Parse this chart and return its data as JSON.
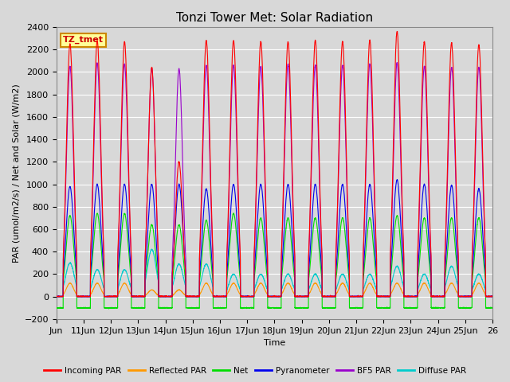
{
  "title": "Tonzi Tower Met: Solar Radiation",
  "ylabel": "PAR (umol/m2/s) / Net and Solar (W/m2)",
  "xlabel": "Time",
  "label_box": "TZ_tmet",
  "ylim": [
    -200,
    2400
  ],
  "num_days": 16,
  "xtick_labels": [
    "Jun",
    "11Jun",
    "12Jun",
    "13Jun",
    "14Jun",
    "15Jun",
    "16Jun",
    "17Jun",
    "18Jun",
    "19Jun",
    "20Jun",
    "21Jun",
    "22Jun",
    "23Jun",
    "24Jun",
    "25Jun",
    "26"
  ],
  "series_colors": {
    "incoming": "#ff0000",
    "reflected": "#ff9900",
    "net": "#00dd00",
    "pyranometer": "#0000ee",
    "bf5": "#9900cc",
    "diffuse": "#00cccc"
  },
  "series_labels": [
    "Incoming PAR",
    "Reflected PAR",
    "Net",
    "Pyranometer",
    "BF5 PAR",
    "Diffuse PAR"
  ],
  "bg_color": "#d8d8d8",
  "grid_color": "#ffffff",
  "fig_bg": "#d8d8d8",
  "title_fontsize": 11,
  "label_fontsize": 8,
  "tick_fontsize": 8,
  "incoming_peaks": [
    2250,
    2280,
    2270,
    2040,
    1200,
    2280,
    2280,
    2270,
    2270,
    2280,
    2270,
    2280,
    2360,
    2270,
    2260,
    2240
  ],
  "pyrano_peaks": [
    980,
    1000,
    1000,
    1000,
    1000,
    960,
    1000,
    1000,
    1000,
    1000,
    1000,
    1000,
    1040,
    1000,
    990,
    960
  ],
  "net_peaks": [
    720,
    740,
    740,
    640,
    640,
    680,
    740,
    700,
    700,
    700,
    700,
    700,
    720,
    700,
    700,
    700
  ],
  "reflected_peaks": [
    120,
    120,
    120,
    60,
    60,
    120,
    120,
    120,
    120,
    120,
    120,
    120,
    120,
    120,
    120,
    120
  ],
  "bf5_peaks": [
    2050,
    2080,
    2070,
    2030,
    2030,
    2060,
    2060,
    2050,
    2070,
    2060,
    2060,
    2070,
    2080,
    2050,
    2040,
    2040
  ],
  "diffuse_peaks": [
    300,
    240,
    240,
    420,
    290,
    290,
    200,
    200,
    200,
    200,
    200,
    200,
    270,
    200,
    270,
    200
  ],
  "net_night": -100
}
